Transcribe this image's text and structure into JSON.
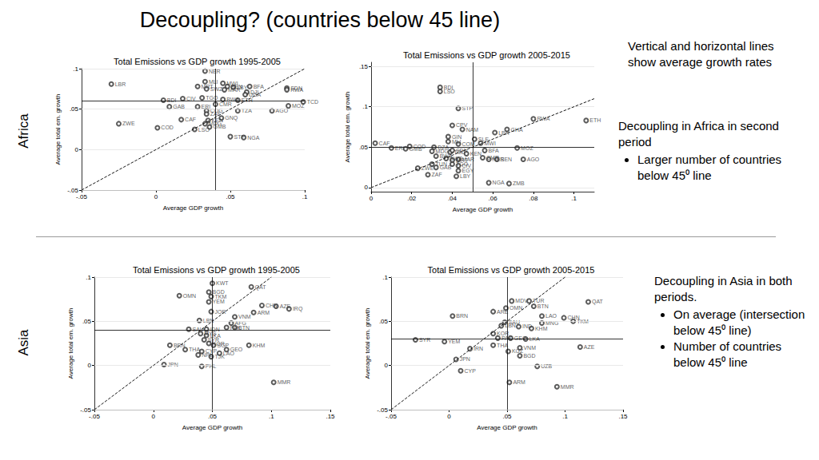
{
  "title": "Decoupling? (countries below 45 line)",
  "rows": [
    "Africa",
    "Asia"
  ],
  "notes": [
    {
      "text": "Vertical and horizontal lines show average growth rates"
    },
    {
      "text": "Decoupling in Africa in second period",
      "bullets": [
        "Larger number of countries below 45⁰ line"
      ]
    },
    {
      "text": "Decoupling in Asia in both periods.",
      "bullets": [
        "On average (intersection below 45⁰ line)",
        "Number of countries below 45⁰ line"
      ]
    }
  ],
  "chart_data": [
    {
      "type": "scatter",
      "title": "Total Emissions vs GDP growth 1995-2005",
      "x_label": "Average GDP growth",
      "y_label": "Average total em. growth",
      "xlim": [
        -0.05,
        0.1
      ],
      "ylim": [
        -0.05,
        0.1
      ],
      "xticks": [
        {
          "value": -0.05,
          "label": "-.05"
        },
        0,
        {
          "value": 0.05,
          "label": ".05"
        },
        {
          "value": 0.1,
          "label": ".1"
        }
      ],
      "yticks": [
        {
          "value": -0.05,
          "label": "-.05"
        },
        0,
        {
          "value": 0.05,
          "label": ".05"
        },
        {
          "value": 0.1,
          "label": ".1"
        }
      ],
      "grid": true,
      "marker": "hollow circle",
      "color": "#333333",
      "average_x": 0.042,
      "average_y": 0.059,
      "labels": [
        "SLE",
        "NER",
        "LBR",
        "MLI",
        "MWI",
        "BEN",
        "LBY",
        "MRT",
        "SWZ",
        "MAR",
        "BFA",
        "DJI",
        "UGA",
        "SDN",
        "RWA",
        "TCD",
        "BDI",
        "CIV",
        "TGO",
        "BWA",
        "ETH",
        "GAB",
        "ERI",
        "CMR",
        "TZA",
        "COG",
        "AGO",
        "MOZ",
        "CAF",
        "ZAF",
        "GNQ",
        "KEN",
        "MDG",
        "GMB",
        "LSO",
        "ZWE",
        "COD",
        "STP",
        "NGA"
      ],
      "x": [
        0.042,
        0.033,
        -0.03,
        0.033,
        0.045,
        0.048,
        0.052,
        0.028,
        0.034,
        0.046,
        0.063,
        0.061,
        0.06,
        0.088,
        0.088,
        0.099,
        0.005,
        0.018,
        0.031,
        0.045,
        0.055,
        0.009,
        0.028,
        0.04,
        0.055,
        0.034,
        0.078,
        0.089,
        0.017,
        0.034,
        0.044,
        0.035,
        0.033,
        0.036,
        0.026,
        -0.025,
        0.001,
        0.05,
        0.059
      ],
      "y": [
        0.104,
        0.097,
        0.081,
        0.084,
        0.082,
        0.078,
        0.077,
        0.078,
        0.075,
        0.074,
        0.078,
        0.071,
        0.068,
        0.076,
        0.074,
        0.059,
        0.061,
        0.063,
        0.064,
        0.062,
        0.061,
        0.053,
        0.053,
        0.056,
        0.048,
        0.048,
        0.048,
        0.054,
        0.037,
        0.044,
        0.039,
        0.036,
        0.032,
        0.028,
        0.025,
        0.032,
        0.027,
        0.016,
        0.015
      ]
    },
    {
      "type": "scatter",
      "title": "Total Emissions vs GDP growth 2005-2015",
      "x_label": "Average GDP growth",
      "y_label": "Average total em. growth",
      "xlim": [
        0,
        0.11
      ],
      "ylim": [
        -0.005,
        0.155
      ],
      "xticks": [
        0,
        {
          "value": 0.02,
          "label": ".02"
        },
        {
          "value": 0.04,
          "label": ".04"
        },
        {
          "value": 0.06,
          "label": ".06"
        },
        {
          "value": 0.08,
          "label": ".08"
        },
        {
          "value": 0.1,
          "label": ".1"
        }
      ],
      "yticks": [
        0,
        {
          "value": 0.05,
          "label": ".05"
        },
        {
          "value": 0.1,
          "label": ".1"
        },
        {
          "value": 0.15,
          "label": ".15"
        }
      ],
      "grid": true,
      "marker": "hollow circle",
      "color": "#333333",
      "average_x": 0.047,
      "average_y": 0.05,
      "labels": [
        "BDI",
        "LSO",
        "STP",
        "RWA",
        "ETH",
        "CPV",
        "NAM",
        "LBR",
        "GHA",
        "GIN",
        "SLE",
        "MLI",
        "MWI",
        "COM",
        "CAF",
        "ERI",
        "GMB",
        "COD",
        "DZA",
        "MOZ",
        "MDG",
        "TCD",
        "SDN",
        "KEN",
        "BFA",
        "CMR",
        "NER",
        "SEN",
        "AGO",
        "BWA",
        "SWZ",
        "MRT",
        "TUN",
        "ZWE",
        "GAB",
        "TGO",
        "CIV",
        "MAR",
        "EGY",
        "ZAF",
        "LBY",
        "NGA",
        "ZMB"
      ],
      "x": [
        0.034,
        0.034,
        0.043,
        0.08,
        0.106,
        0.04,
        0.045,
        0.061,
        0.067,
        0.038,
        0.051,
        0.038,
        0.054,
        0.043,
        0.002,
        0.01,
        0.017,
        0.019,
        0.031,
        0.072,
        0.03,
        0.039,
        0.04,
        0.047,
        0.056,
        0.055,
        0.058,
        0.062,
        0.075,
        0.032,
        0.037,
        0.04,
        0.03,
        0.023,
        0.032,
        0.04,
        0.043,
        0.043,
        0.043,
        0.028,
        0.042,
        0.058,
        0.068
      ],
      "y": [
        0.124,
        0.119,
        0.098,
        0.085,
        0.083,
        0.077,
        0.072,
        0.068,
        0.072,
        0.063,
        0.06,
        0.057,
        0.055,
        0.054,
        0.055,
        0.049,
        0.048,
        0.051,
        0.05,
        0.049,
        0.045,
        0.044,
        0.046,
        0.042,
        0.046,
        0.037,
        0.035,
        0.035,
        0.035,
        0.039,
        0.036,
        0.034,
        0.029,
        0.024,
        0.025,
        0.029,
        0.027,
        0.035,
        0.021,
        0.016,
        0.014,
        0.006,
        0.005
      ]
    },
    {
      "type": "scatter",
      "title": "Total Emissions vs GDP growth 1995-2005",
      "x_label": "Average GDP growth",
      "y_label": "Average total em. growth",
      "xlim": [
        -0.05,
        0.15
      ],
      "ylim": [
        -0.05,
        0.1
      ],
      "xticks": [
        {
          "value": -0.05,
          "label": "-.05"
        },
        0,
        {
          "value": 0.05,
          "label": ".05"
        },
        {
          "value": 0.1,
          "label": ".1"
        },
        {
          "value": 0.15,
          "label": ".15"
        }
      ],
      "yticks": [
        {
          "value": -0.05,
          "label": "-.05"
        },
        0,
        {
          "value": 0.05,
          "label": ".05"
        },
        {
          "value": 0.1,
          "label": ".1"
        }
      ],
      "grid": true,
      "marker": "hollow circle",
      "color": "#333333",
      "average_x": 0.054,
      "average_y": 0.042,
      "labels": [
        "KWT",
        "QAT",
        "BGD",
        "OMN",
        "TKM",
        "YEM",
        "CHN",
        "AZE",
        "IRQ",
        "ARM",
        "JOR",
        "VNM",
        "LBN",
        "AFG",
        "BTN",
        "SAU",
        "PAK",
        "IDN",
        "MYS",
        "LKA",
        "SYR",
        "KOR",
        "KHM",
        "SGP",
        "BRN",
        "THA",
        "CYP",
        "NPL",
        "GEO",
        "LAO",
        "TJK",
        "JPN",
        "PHL",
        "MMR"
      ],
      "x": [
        0.05,
        0.083,
        0.047,
        0.022,
        0.049,
        0.047,
        0.092,
        0.104,
        0.115,
        0.085,
        0.049,
        0.069,
        0.039,
        0.066,
        0.069,
        0.03,
        0.062,
        0.045,
        0.04,
        0.045,
        0.043,
        0.047,
        0.081,
        0.051,
        0.014,
        0.027,
        0.041,
        0.038,
        0.062,
        0.056,
        0.049,
        0.009,
        0.041,
        0.102
      ],
      "y": [
        0.093,
        0.089,
        0.083,
        0.079,
        0.078,
        0.072,
        0.068,
        0.067,
        0.064,
        0.06,
        0.061,
        0.055,
        0.051,
        0.048,
        0.043,
        0.041,
        0.043,
        0.041,
        0.036,
        0.034,
        0.029,
        0.025,
        0.023,
        0.023,
        0.023,
        0.018,
        0.016,
        0.012,
        0.018,
        0.014,
        0.01,
        0.001,
        -0.001,
        -0.019
      ]
    },
    {
      "type": "scatter",
      "title": "Total Emissions vs GDP growth 2005-2015",
      "x_label": "Average GDP growth",
      "y_label": "Average total em. growth",
      "xlim": [
        -0.05,
        0.15
      ],
      "ylim": [
        -0.05,
        0.1
      ],
      "xticks": [
        {
          "value": -0.05,
          "label": "-.05"
        },
        0,
        {
          "value": 0.05,
          "label": ".05"
        },
        {
          "value": 0.1,
          "label": ".1"
        },
        {
          "value": 0.15,
          "label": ".15"
        }
      ],
      "yticks": [
        {
          "value": -0.05,
          "label": "-.05"
        },
        0,
        {
          "value": 0.05,
          "label": ".05"
        },
        {
          "value": 0.1,
          "label": ".1"
        }
      ],
      "grid": true,
      "marker": "hollow circle",
      "color": "#333333",
      "average_x": 0.054,
      "average_y": 0.033,
      "labels": [
        "MDV",
        "TUR",
        "QAT",
        "OMN",
        "BTN",
        "ARE",
        "BRN",
        "LAO",
        "CHN",
        "TKM",
        "MNG",
        "SAU",
        "LBN",
        "KHM",
        "IND",
        "IRN",
        "SYR",
        "YEM",
        "KOR",
        "PAK",
        "LKA",
        "GEO",
        "THA",
        "VNM",
        "AZE",
        "KGZ",
        "BGD",
        "JPN",
        "UZB",
        "CYP",
        "ARM",
        "MMR"
      ],
      "x": [
        0.054,
        0.069,
        0.12,
        0.049,
        0.073,
        0.038,
        0.003,
        0.08,
        0.099,
        0.107,
        0.08,
        0.048,
        0.045,
        0.071,
        0.06,
        0.018,
        -0.029,
        -0.004,
        0.038,
        0.042,
        0.066,
        0.053,
        0.038,
        0.061,
        0.113,
        0.051,
        0.061,
        0.006,
        0.076,
        0.01,
        0.052,
        0.093
      ],
      "y": [
        0.073,
        0.073,
        0.072,
        0.065,
        0.067,
        0.061,
        0.056,
        0.056,
        0.054,
        0.05,
        0.048,
        0.049,
        0.045,
        0.042,
        0.044,
        0.019,
        0.029,
        0.027,
        0.036,
        0.031,
        0.03,
        0.031,
        0.023,
        0.02,
        0.021,
        0.016,
        0.011,
        0.007,
        -0.001,
        -0.006,
        -0.019,
        -0.024
      ]
    }
  ]
}
